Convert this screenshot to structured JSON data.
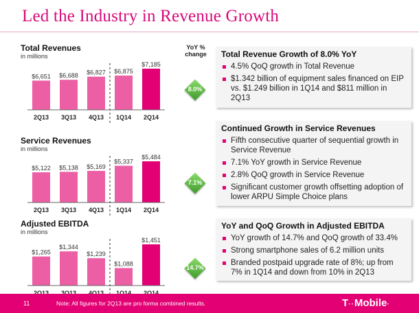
{
  "page": {
    "title": "Led the Industry in Revenue Growth",
    "yoy_header": "YoY % change",
    "page_number": "11",
    "footnote": "Note: All figures for 2Q13 are pro forma combined results.",
    "logo": {
      "mark": "T",
      "sep": "··",
      "word": "Mobile",
      "dot": "·"
    }
  },
  "colors": {
    "magenta": "#e20074",
    "light_bar": "#ec5fa4",
    "badge_green": "#58b83b"
  },
  "chart_data": [
    {
      "type": "bar",
      "title": "Total Revenues",
      "subtitle": "in millions",
      "categories": [
        "2Q13",
        "3Q13",
        "4Q13",
        "1Q14",
        "2Q14"
      ],
      "values": [
        6651,
        6688,
        6827,
        6875,
        7185
      ],
      "labels": [
        "$6,651",
        "$6,688",
        "$6,827",
        "$6,875",
        "$7,185"
      ],
      "highlight": "2Q14",
      "yoy": "8.0%"
    },
    {
      "type": "bar",
      "title": "Service Revenues",
      "subtitle": "in millions",
      "categories": [
        "2Q13",
        "3Q13",
        "4Q13",
        "1Q14",
        "2Q14"
      ],
      "values": [
        5122,
        5138,
        5169,
        5337,
        5484
      ],
      "labels": [
        "$5,122",
        "$5,138",
        "$5,169",
        "$5,337",
        "$5,484"
      ],
      "highlight": "2Q14",
      "yoy": "7.1%"
    },
    {
      "type": "bar",
      "title": "Adjusted EBITDA",
      "subtitle": "in millions",
      "categories": [
        "2Q13",
        "3Q13",
        "4Q13",
        "1Q14",
        "2Q14"
      ],
      "values": [
        1265,
        1344,
        1239,
        1088,
        1451
      ],
      "labels": [
        "$1,265",
        "$1,344",
        "$1,239",
        "$1,088",
        "$1,451"
      ],
      "highlight": "2Q14",
      "yoy": "14.7%"
    }
  ],
  "boxes": [
    {
      "title": "Total Revenue Growth of 8.0% YoY",
      "bullets": [
        "4.5% QoQ growth in Total Revenue",
        "$1.342 billion of equipment sales financed on EIP vs. $1.249 billion in 1Q14 and $811 million in 2Q13"
      ]
    },
    {
      "title": "Continued Growth in Service Revenues",
      "bullets": [
        "Fifth consecutive quarter of sequential growth in Service Revenue",
        "7.1% YoY growth in Service Revenue",
        "2.8% QoQ growth in Service Revenue",
        "Significant customer growth offsetting adoption of lower ARPU Simple Choice plans"
      ]
    },
    {
      "title": "YoY and QoQ Growth in Adjusted EBITDA",
      "bullets": [
        "YoY growth of 14.7% and QoQ growth of 33.4%",
        "Strong smartphone sales of 6.2 million units",
        "Branded postpaid upgrade rate of 8%; up from 7% in 1Q14 and down from 10% in 2Q13"
      ]
    }
  ]
}
